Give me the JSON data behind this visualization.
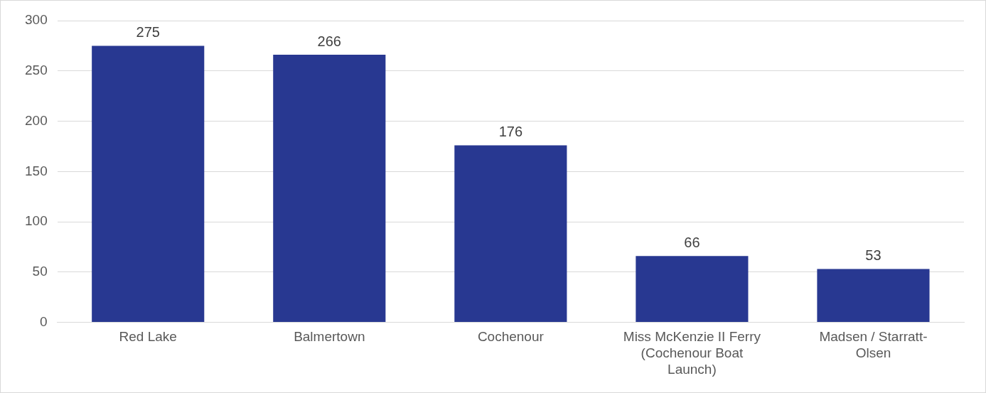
{
  "chart_data": {
    "type": "bar",
    "categories": [
      "Red Lake",
      "Balmertown",
      "Cochenour",
      "Miss McKenzie II Ferry (Cochenour Boat Launch)",
      "Madsen / Starratt-Olsen"
    ],
    "values": [
      275,
      266,
      176,
      66,
      53
    ],
    "color": "#283891",
    "ylim": [
      0,
      300
    ],
    "yticks": [
      0,
      50,
      100,
      150,
      200,
      250,
      300
    ],
    "grid": "y",
    "data_labels": true
  }
}
